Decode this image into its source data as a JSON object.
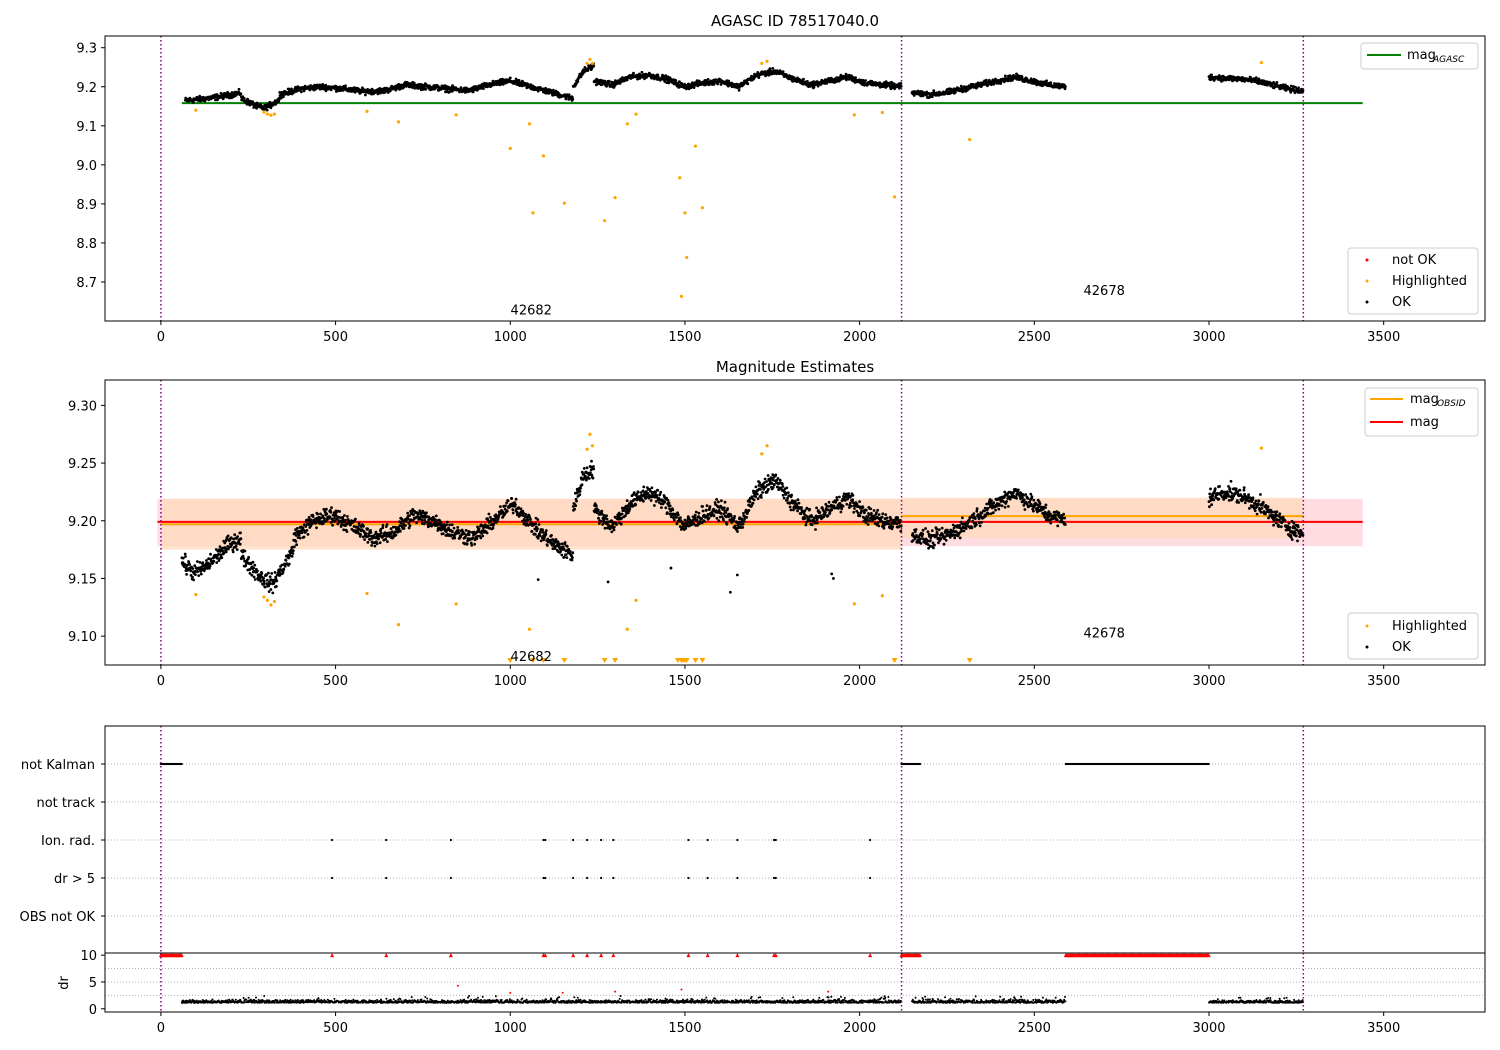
{
  "chart_data": [
    {
      "type": "scatter",
      "title": "AGASC ID 78517040.0",
      "xlim": [
        -160,
        3790
      ],
      "ylim": [
        8.6,
        9.33
      ],
      "x_ticks": [
        0,
        500,
        1000,
        1500,
        2000,
        2500,
        3000,
        3500
      ],
      "y_ticks": [
        8.7,
        8.8,
        8.9,
        9.0,
        9.1,
        9.2,
        9.3
      ],
      "y_tick_labels": [
        "8.7",
        "8.8",
        "8.9",
        "9.0",
        "9.1",
        "9.2",
        "9.3"
      ],
      "vlines": [
        0,
        2120,
        3270
      ],
      "obsid_labels": [
        {
          "text": "42682",
          "x": 1000,
          "y": 8.63
        },
        {
          "text": "42678",
          "x": 2640,
          "y": 8.68
        }
      ],
      "mag_agasc": {
        "value": 9.158,
        "x_range": [
          60,
          3440
        ]
      },
      "ok_segments": [
        {
          "x": [
            70,
            230
          ],
          "levels": [
            9.165,
            9.168,
            9.172,
            9.178,
            9.185
          ]
        },
        {
          "x": [
            230,
            340
          ],
          "levels": [
            9.17,
            9.16,
            9.15,
            9.145,
            9.155,
            9.168
          ]
        },
        {
          "x": [
            340,
            1180
          ],
          "levels": [
            9.18,
            9.195,
            9.2,
            9.195,
            9.188,
            9.19,
            9.205,
            9.2,
            9.195,
            9.19,
            9.205,
            9.215,
            9.2,
            9.185,
            9.17
          ]
        },
        {
          "x": [
            1180,
            1240
          ],
          "levels": [
            9.2,
            9.24,
            9.255
          ]
        },
        {
          "x": [
            1240,
            2120
          ],
          "levels": [
            9.215,
            9.205,
            9.225,
            9.23,
            9.22,
            9.2,
            9.21,
            9.215,
            9.2,
            9.23,
            9.24,
            9.22,
            9.205,
            9.215,
            9.225,
            9.21,
            9.205,
            9.2
          ]
        },
        {
          "x": [
            2150,
            2590
          ],
          "levels": [
            9.185,
            9.18,
            9.185,
            9.195,
            9.205,
            9.215,
            9.225,
            9.215,
            9.205,
            9.2
          ]
        },
        {
          "x": [
            3000,
            3270
          ],
          "levels": [
            9.225,
            9.222,
            9.22,
            9.215,
            9.205,
            9.195,
            9.19
          ]
        }
      ],
      "highlighted": [
        {
          "x": 100,
          "y": 9.14
        },
        {
          "x": 295,
          "y": 9.135
        },
        {
          "x": 305,
          "y": 9.13
        },
        {
          "x": 315,
          "y": 9.127
        },
        {
          "x": 325,
          "y": 9.13
        },
        {
          "x": 590,
          "y": 9.137
        },
        {
          "x": 680,
          "y": 9.11
        },
        {
          "x": 845,
          "y": 9.128
        },
        {
          "x": 1000,
          "y": 9.042
        },
        {
          "x": 1055,
          "y": 9.105
        },
        {
          "x": 1065,
          "y": 8.877
        },
        {
          "x": 1095,
          "y": 9.023
        },
        {
          "x": 1155,
          "y": 8.902
        },
        {
          "x": 1220,
          "y": 9.26
        },
        {
          "x": 1228,
          "y": 9.27
        },
        {
          "x": 1235,
          "y": 9.26
        },
        {
          "x": 1270,
          "y": 8.857
        },
        {
          "x": 1300,
          "y": 8.916
        },
        {
          "x": 1335,
          "y": 9.105
        },
        {
          "x": 1360,
          "y": 9.13
        },
        {
          "x": 1485,
          "y": 8.967
        },
        {
          "x": 1490,
          "y": 8.663
        },
        {
          "x": 1500,
          "y": 8.877
        },
        {
          "x": 1505,
          "y": 8.763
        },
        {
          "x": 1530,
          "y": 9.048
        },
        {
          "x": 1550,
          "y": 8.89
        },
        {
          "x": 1720,
          "y": 9.26
        },
        {
          "x": 1735,
          "y": 9.265
        },
        {
          "x": 1985,
          "y": 9.128
        },
        {
          "x": 2065,
          "y": 9.134
        },
        {
          "x": 2100,
          "y": 8.918
        },
        {
          "x": 2315,
          "y": 9.065
        },
        {
          "x": 3150,
          "y": 9.262
        }
      ],
      "legend_lines": [
        {
          "label_main": "mag",
          "label_sub": "AGASC",
          "color": "#008000"
        }
      ],
      "legend_points": [
        {
          "label": "not OK",
          "color": "#ff0000"
        },
        {
          "label": "Highlighted",
          "color": "#ffa500"
        },
        {
          "label": "OK",
          "color": "#000000"
        }
      ]
    },
    {
      "type": "scatter",
      "title": "Magnitude Estimates",
      "xlim": [
        -160,
        3790
      ],
      "ylim": [
        9.075,
        9.322
      ],
      "x_ticks": [
        0,
        500,
        1000,
        1500,
        2000,
        2500,
        3000,
        3500
      ],
      "y_ticks": [
        9.1,
        9.15,
        9.2,
        9.25,
        9.3
      ],
      "y_tick_labels": [
        "9.10",
        "9.15",
        "9.20",
        "9.25",
        "9.30"
      ],
      "vlines": [
        0,
        2120,
        3270
      ],
      "obsid_labels": [
        {
          "text": "42682",
          "x": 1000,
          "y": 9.083
        },
        {
          "text": "42678",
          "x": 2640,
          "y": 9.103
        }
      ],
      "mag": {
        "value": 9.199,
        "band": [
          9.178,
          9.219
        ],
        "x_range": [
          -10,
          3440
        ]
      },
      "mag_obsid": [
        {
          "value": 9.197,
          "band": [
            9.175,
            9.219
          ],
          "x_range": [
            0,
            2120
          ]
        },
        {
          "value": 9.204,
          "band": [
            9.185,
            9.22
          ],
          "x_range": [
            2120,
            3270
          ]
        }
      ],
      "ok_segments": [
        {
          "x": [
            60,
            230
          ],
          "levels": [
            9.165,
            9.155,
            9.16,
            9.17,
            9.18,
            9.185
          ]
        },
        {
          "x": [
            230,
            380
          ],
          "levels": [
            9.17,
            9.16,
            9.15,
            9.145,
            9.16,
            9.175
          ]
        },
        {
          "x": [
            380,
            1180
          ],
          "levels": [
            9.185,
            9.2,
            9.205,
            9.195,
            9.185,
            9.19,
            9.205,
            9.2,
            9.19,
            9.185,
            9.2,
            9.215,
            9.195,
            9.18,
            9.17
          ]
        },
        {
          "x": [
            1180,
            1240
          ],
          "levels": [
            9.21,
            9.24,
            9.245
          ]
        },
        {
          "x": [
            1240,
            2120
          ],
          "levels": [
            9.21,
            9.195,
            9.215,
            9.225,
            9.215,
            9.195,
            9.205,
            9.21,
            9.195,
            9.225,
            9.235,
            9.215,
            9.2,
            9.21,
            9.22,
            9.205,
            9.2,
            9.198
          ]
        },
        {
          "x": [
            2150,
            2590
          ],
          "levels": [
            9.188,
            9.183,
            9.187,
            9.195,
            9.205,
            9.215,
            9.225,
            9.215,
            9.205,
            9.2
          ]
        },
        {
          "x": [
            3000,
            3270
          ],
          "levels": [
            9.22,
            9.225,
            9.222,
            9.215,
            9.205,
            9.195,
            9.188
          ]
        }
      ],
      "ok_outliers": [
        {
          "x": 1080,
          "y": 9.149
        },
        {
          "x": 1280,
          "y": 9.147
        },
        {
          "x": 1460,
          "y": 9.159
        },
        {
          "x": 1630,
          "y": 9.138
        },
        {
          "x": 1650,
          "y": 9.153
        },
        {
          "x": 1920,
          "y": 9.154
        },
        {
          "x": 1925,
          "y": 9.15
        }
      ],
      "highlighted": [
        {
          "x": 100,
          "y": 9.136
        },
        {
          "x": 295,
          "y": 9.134
        },
        {
          "x": 305,
          "y": 9.131
        },
        {
          "x": 315,
          "y": 9.127
        },
        {
          "x": 325,
          "y": 9.13
        },
        {
          "x": 590,
          "y": 9.137
        },
        {
          "x": 680,
          "y": 9.11
        },
        {
          "x": 845,
          "y": 9.128
        },
        {
          "x": 1055,
          "y": 9.106
        },
        {
          "x": 1220,
          "y": 9.262
        },
        {
          "x": 1228,
          "y": 9.275
        },
        {
          "x": 1235,
          "y": 9.265
        },
        {
          "x": 1335,
          "y": 9.106
        },
        {
          "x": 1360,
          "y": 9.131
        },
        {
          "x": 1720,
          "y": 9.258
        },
        {
          "x": 1735,
          "y": 9.265
        },
        {
          "x": 1985,
          "y": 9.128
        },
        {
          "x": 2065,
          "y": 9.135
        },
        {
          "x": 3150,
          "y": 9.263
        }
      ],
      "below_range_x": [
        1000,
        1065,
        1095,
        1155,
        1270,
        1300,
        1480,
        1490,
        1495,
        1500,
        1505,
        1530,
        1550,
        2100,
        2315
      ],
      "legend_lines": [
        {
          "label_main": "mag",
          "label_sub": "OBSID",
          "color": "#ffa500"
        },
        {
          "label_main": "mag",
          "label_sub": "",
          "color": "#ff0000"
        }
      ],
      "legend_points": [
        {
          "label": "Highlighted",
          "color": "#ffa500"
        },
        {
          "label": "OK",
          "color": "#000000"
        }
      ]
    },
    {
      "type": "scatter",
      "title": "",
      "xlim": [
        -160,
        3790
      ],
      "rows": [
        "not Kalman",
        "not track",
        "Ion. rad.",
        "dr > 5",
        "OBS not OK"
      ],
      "vlines": [
        0,
        2120,
        3270
      ],
      "flag_ranges": {
        "not Kalman": [
          [
            0,
            60
          ],
          [
            2120,
            2175
          ],
          [
            2590,
            3000
          ]
        ]
      },
      "flag_points": {
        "Ion. rad.": [
          490,
          645,
          830,
          1095,
          1100,
          1180,
          1220,
          1260,
          1295,
          1510,
          1565,
          1650,
          1755,
          1760,
          2030
        ],
        "dr > 5": [
          490,
          645,
          830,
          1095,
          1100,
          1180,
          1220,
          1260,
          1295,
          1510,
          1565,
          1650,
          1755,
          1760,
          2030
        ]
      }
    },
    {
      "type": "scatter",
      "title": "",
      "ylabel": "dr",
      "xlim": [
        -160,
        3790
      ],
      "ylim": [
        -0.6,
        10.4
      ],
      "x_ticks": [
        0,
        500,
        1000,
        1500,
        2000,
        2500,
        3000,
        3500
      ],
      "y_ticks": [
        0,
        5,
        10
      ],
      "y_tick_labels": [
        "0",
        "5",
        "10"
      ],
      "vlines": [
        0,
        2120,
        3270
      ],
      "capped_ranges": [
        [
          0,
          60
        ],
        [
          2120,
          2175
        ],
        [
          2590,
          3000
        ]
      ],
      "capped_points": [
        490,
        645,
        830,
        1095,
        1100,
        1180,
        1220,
        1260,
        1295,
        1510,
        1565,
        1650,
        1755,
        1760,
        2030
      ],
      "ok_ranges": [
        [
          60,
          2120
        ],
        [
          2150,
          2590
        ],
        [
          3000,
          3270
        ]
      ],
      "scattered_red": [
        {
          "x": 850,
          "y": 4.3
        },
        {
          "x": 1000,
          "y": 3.0
        },
        {
          "x": 1150,
          "y": 3.0
        },
        {
          "x": 1300,
          "y": 3.2
        },
        {
          "x": 1490,
          "y": 3.6
        },
        {
          "x": 1910,
          "y": 3.2
        }
      ]
    }
  ],
  "colors": {
    "ok": "#000000",
    "highlighted": "#ffa500",
    "not_ok": "#ff0000",
    "agasc_line": "#008000",
    "obsid_line": "#ffa500",
    "mag_line": "#ff0000",
    "vline": "#800080",
    "mag_band": "#ffc0cb",
    "obsid_band": "#ffdab9"
  }
}
